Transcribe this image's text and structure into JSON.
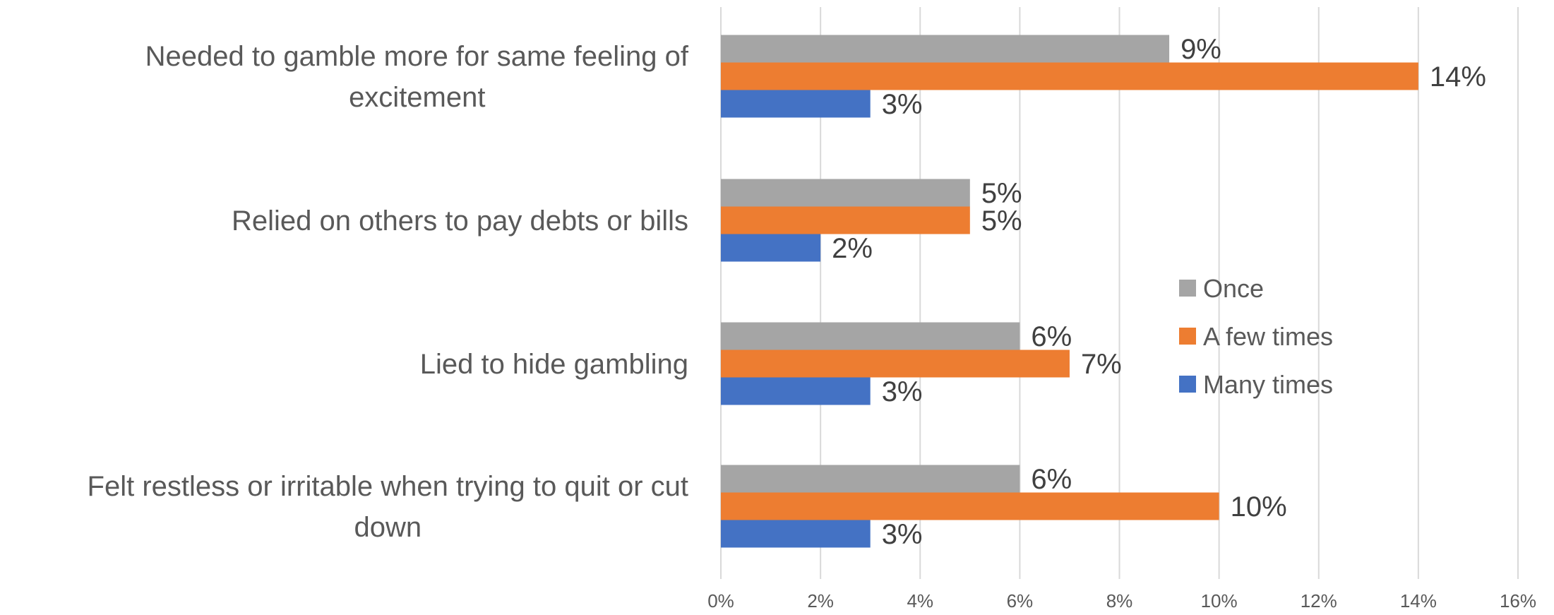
{
  "chart_data": {
    "type": "bar",
    "orientation": "horizontal",
    "categories": [
      [
        "Needed to gamble more for same feeling of",
        "excitement"
      ],
      [
        "Relied on others to pay debts or bills"
      ],
      [
        "Lied to hide gambling"
      ],
      [
        "Felt restless or irritable when trying to quit or cut",
        "down"
      ]
    ],
    "series": [
      {
        "name": "Once",
        "color": "#a5a5a5",
        "values": [
          9,
          5,
          6,
          6
        ]
      },
      {
        "name": "A few times",
        "color": "#ed7d31",
        "values": [
          14,
          5,
          7,
          10
        ]
      },
      {
        "name": "Many times",
        "color": "#4472c4",
        "values": [
          3,
          2,
          3,
          3
        ]
      }
    ],
    "xlim": [
      0,
      16
    ],
    "xticks": [
      0,
      2,
      4,
      6,
      8,
      10,
      12,
      14,
      16
    ],
    "tick_suffix": "%",
    "value_suffix": "%",
    "grid": true,
    "legend_position": "right-center",
    "title": "",
    "xlabel": "",
    "ylabel": ""
  }
}
